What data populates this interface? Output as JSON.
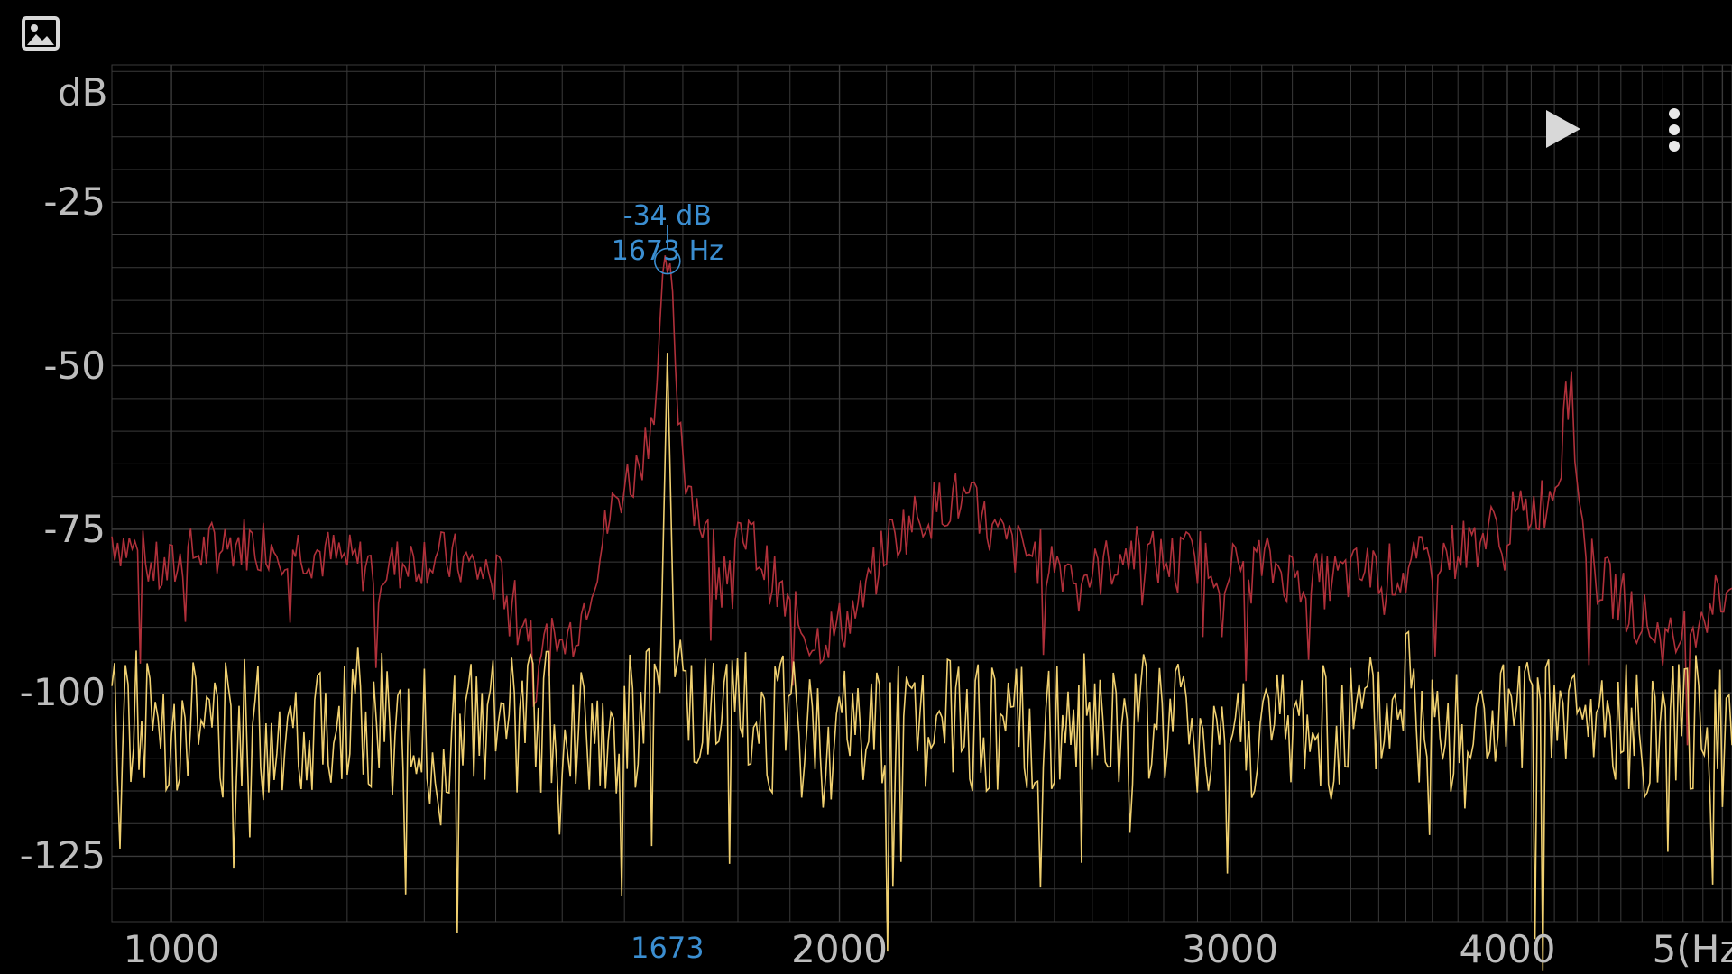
{
  "toolbar": {
    "image_icon": "image-icon",
    "play_icon": "play-icon",
    "menu_icon": "more-vert-icon"
  },
  "axes": {
    "y_unit": "dB",
    "y_ticks": [
      "-25",
      "-50",
      "-75",
      "-100",
      "-125"
    ],
    "x_ticks": [
      "1000",
      "2000",
      "3000",
      "4000",
      "5(Hz"
    ],
    "x_peak_label": "1673"
  },
  "cursor": {
    "db_text": "-34 dB",
    "hz_text": "1673 Hz"
  },
  "colors": {
    "background": "#000000",
    "grid": "#3a3a3a",
    "peak_hold": "#b0303a",
    "live": "#f0d070",
    "cursor": "#3b8ed1"
  },
  "chart_data": {
    "type": "line",
    "xlabel": "Hz",
    "ylabel": "dB",
    "ylim": [
      -135,
      -4
    ],
    "x_scale": "log",
    "xlim": [
      940,
      5050
    ],
    "grid": true,
    "series": [
      {
        "x": [
          940,
          960,
          990,
          1020,
          1060,
          1100,
          1150,
          1200,
          1250,
          1300,
          1350,
          1390,
          1420,
          1440,
          1460,
          1480,
          1500,
          1530,
          1560,
          1580,
          1600,
          1620,
          1640,
          1655,
          1665,
          1673,
          1682,
          1692,
          1705,
          1720,
          1750,
          1780,
          1820,
          1860,
          1900,
          1950,
          2000,
          2050,
          2100,
          2150,
          2200,
          2250,
          2300,
          2350,
          2400,
          2450,
          2500,
          2600,
          2700,
          2800,
          2900,
          3000,
          3100,
          3200,
          3300,
          3400,
          3500,
          3600,
          3700,
          3800,
          3900,
          4000,
          4100,
          4180,
          4230,
          4260,
          4290,
          4310,
          4340,
          4380,
          4450,
          4550,
          4650,
          4750,
          4850,
          4950,
          5050
        ],
        "y": [
          -76,
          -78,
          -82,
          -79,
          -77,
          -77,
          -78,
          -80,
          -81,
          -79,
          -80,
          -82,
          -84,
          -88,
          -92,
          -93,
          -93,
          -88,
          -78,
          -72,
          -68,
          -66,
          -60,
          -52,
          -40,
          -34,
          -42,
          -56,
          -66,
          -70,
          -78,
          -80,
          -76,
          -82,
          -88,
          -92,
          -90,
          -86,
          -77,
          -74,
          -72,
          -70,
          -72,
          -76,
          -78,
          -79,
          -80,
          -82,
          -78,
          -80,
          -79,
          -81,
          -80,
          -82,
          -83,
          -82,
          -81,
          -82,
          -79,
          -78,
          -76,
          -74,
          -72,
          -70,
          -64,
          -40,
          -62,
          -72,
          -78,
          -82,
          -84,
          -87,
          -90,
          -93,
          -89,
          -86,
          -84
        ]
      },
      {
        "x": [
          940,
          1000,
          1100,
          1200,
          1300,
          1400,
          1500,
          1600,
          1660,
          1673,
          1686,
          1750,
          1850,
          1950,
          2050,
          2150,
          2250,
          2350,
          2450,
          2550,
          2650,
          2750,
          2850,
          2950,
          3050,
          3150,
          3250,
          3350,
          3450,
          3550,
          3600,
          3650,
          3750,
          3850,
          3950,
          4050,
          4150,
          4250,
          4350,
          4450,
          4550,
          4650,
          4750,
          4850,
          4950,
          5000,
          5020,
          5050
        ],
        "y": [
          -104,
          -104,
          -106,
          -103,
          -107,
          -105,
          -104,
          -106,
          -100,
          -48,
          -98,
          -106,
          -104,
          -107,
          -105,
          -104,
          -106,
          -105,
          -107,
          -104,
          -106,
          -105,
          -104,
          -106,
          -105,
          -107,
          -104,
          -106,
          -105,
          -104,
          -96,
          -106,
          -105,
          -107,
          -104,
          -106,
          -105,
          -104,
          -106,
          -105,
          -107,
          -104,
          -106,
          -105,
          -104,
          -98,
          -106,
          -108
        ]
      }
    ],
    "cursor": {
      "x": 1673,
      "y": -34
    }
  }
}
